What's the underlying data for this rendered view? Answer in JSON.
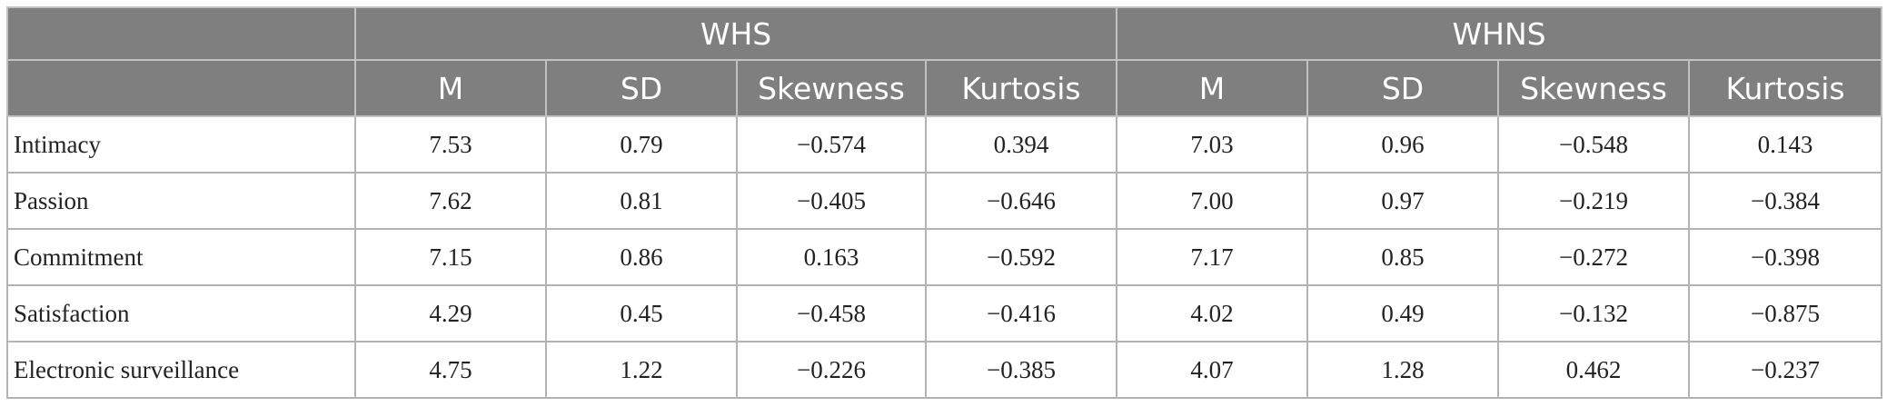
{
  "table": {
    "group_headers": [
      "",
      "WHS",
      "WHNS"
    ],
    "sub_headers": [
      "",
      "M",
      "SD",
      "Skewness",
      "Kurtosis",
      "M",
      "SD",
      "Skewness",
      "Kurtosis"
    ],
    "rows": [
      {
        "label": "Intimacy",
        "values": [
          "7.53",
          "0.79",
          "−0.574",
          "0.394",
          "7.03",
          "0.96",
          "−0.548",
          "0.143"
        ]
      },
      {
        "label": "Passion",
        "values": [
          "7.62",
          "0.81",
          "−0.405",
          "−0.646",
          "7.00",
          "0.97",
          "−0.219",
          "−0.384"
        ]
      },
      {
        "label": "Commitment",
        "values": [
          "7.15",
          "0.86",
          "0.163",
          "−0.592",
          "7.17",
          "0.85",
          "−0.272",
          "−0.398"
        ]
      },
      {
        "label": "Satisfaction",
        "values": [
          "4.29",
          "0.45",
          "−0.458",
          "−0.416",
          "4.02",
          "0.49",
          "−0.132",
          "−0.875"
        ]
      },
      {
        "label": "Electronic surveillance",
        "values": [
          "4.75",
          "1.22",
          "−0.226",
          "−0.385",
          "4.07",
          "1.28",
          "0.462",
          "−0.237"
        ]
      }
    ]
  }
}
